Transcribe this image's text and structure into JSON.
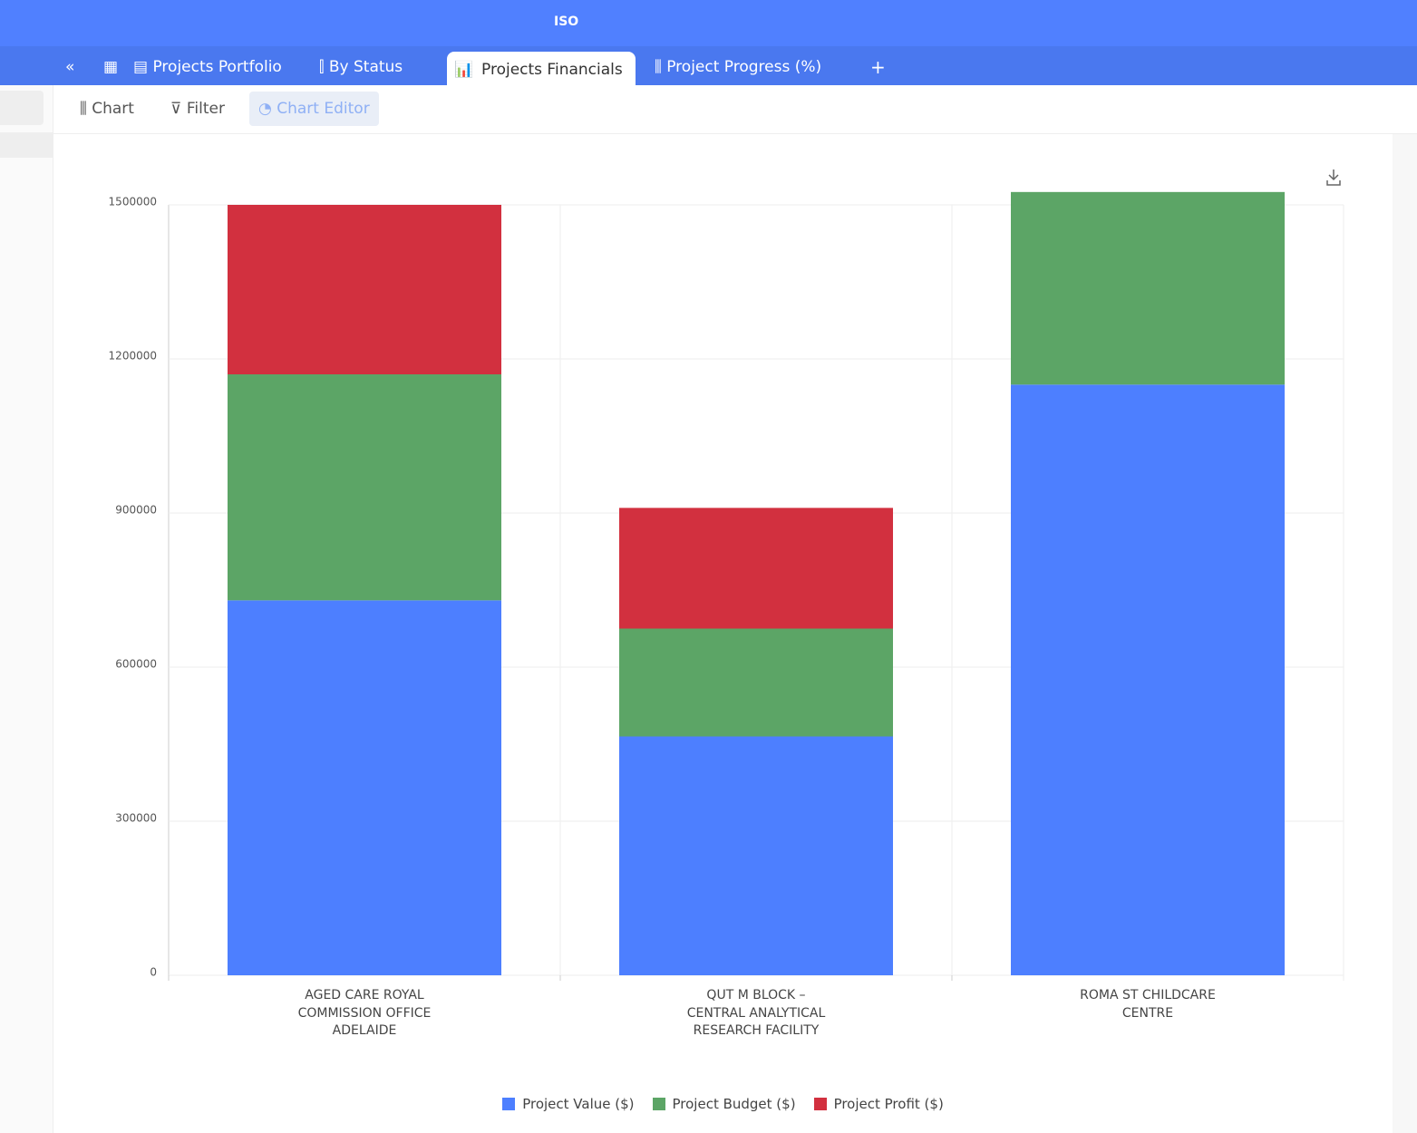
{
  "app": {
    "logo": "ISO",
    "tabs": [
      "Projects Portfolio",
      "By Status",
      "Projects Financials",
      "Project Progress (%)",
      "+"
    ],
    "toolbar": [
      "Chart",
      "Filter",
      "Chart Editor"
    ]
  },
  "chart_data": {
    "type": "stacked_bar",
    "categories": [
      "AGED CARE ROYAL COMMISSION OFFICE ADELAIDE",
      "QUT M BLOCK – CENTRAL ANALYTICAL RESEARCH FACILITY",
      "ROMA ST CHILDCARE CENTRE"
    ],
    "series": [
      {
        "name": "Project Value ($)",
        "color": "#4d7fff",
        "values": [
          730000,
          465000,
          1150000
        ]
      },
      {
        "name": "Project Budget ($)",
        "color": "#5ca566",
        "values": [
          440000,
          210000,
          375000
        ]
      },
      {
        "name": "Project Profit ($)",
        "color": "#d2303f",
        "values": [
          330000,
          235000,
          null
        ]
      }
    ],
    "ylim": [
      0,
      1500000
    ],
    "yticks": [
      0,
      300000,
      600000,
      900000,
      1200000,
      1500000
    ],
    "grid": true,
    "legend": "bottom"
  }
}
